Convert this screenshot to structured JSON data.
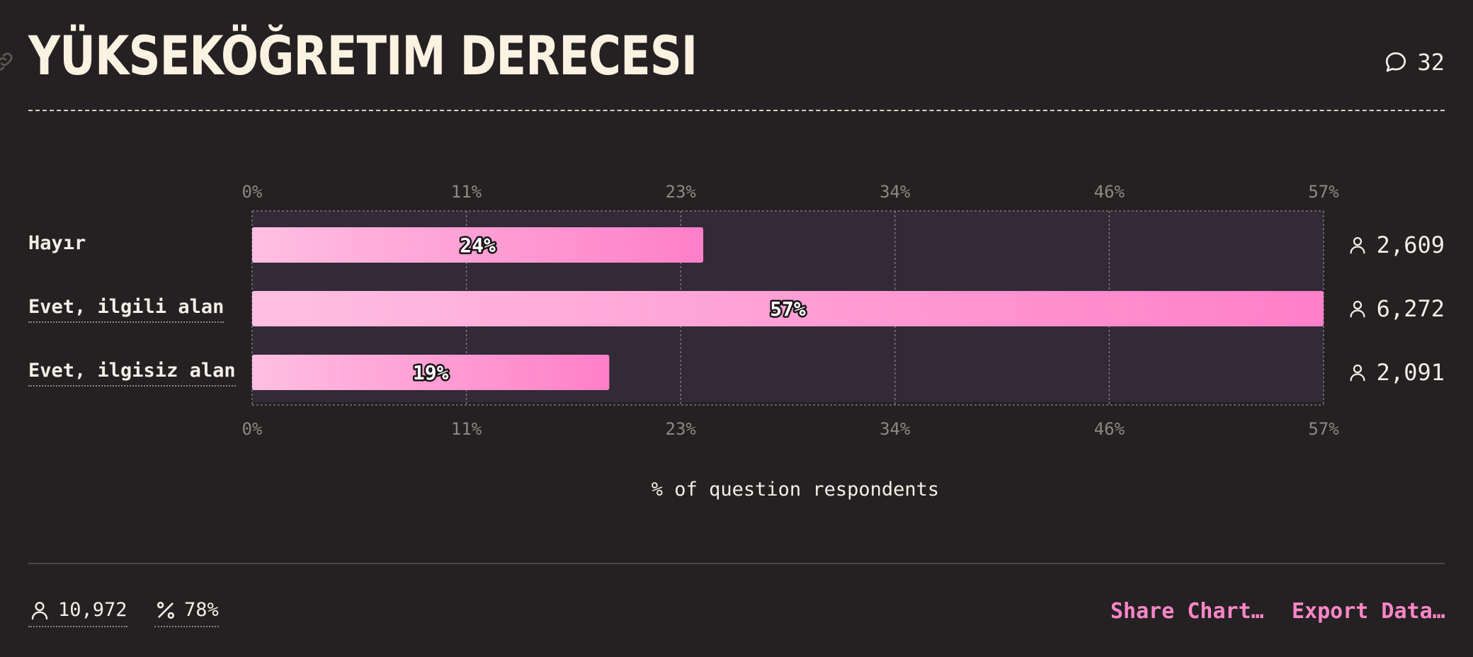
{
  "header": {
    "title": "YÜKSEKÖĞRETIM DERECESI",
    "comment_count": "32"
  },
  "chart_data": {
    "type": "bar",
    "orientation": "horizontal",
    "categories": [
      "Hayır",
      "Evet, ilgili alan",
      "Evet, ilgisiz alan"
    ],
    "values": [
      24,
      57,
      19
    ],
    "value_labels": [
      "24%",
      "57%",
      "19%"
    ],
    "counts": [
      "2,609",
      "6,272",
      "2,091"
    ],
    "x_ticks": [
      "0%",
      "11%",
      "23%",
      "34%",
      "46%",
      "57%"
    ],
    "xlim": [
      0,
      57
    ],
    "xlabel": "% of question respondents",
    "grid": true,
    "bar_gradient": [
      "#ffbfe2",
      "#ff7fc8"
    ],
    "track_color": "#322a37"
  },
  "footer": {
    "respondents": "10,972",
    "percent": "78%",
    "share_label": "Share Chart…",
    "export_label": "Export Data…"
  }
}
